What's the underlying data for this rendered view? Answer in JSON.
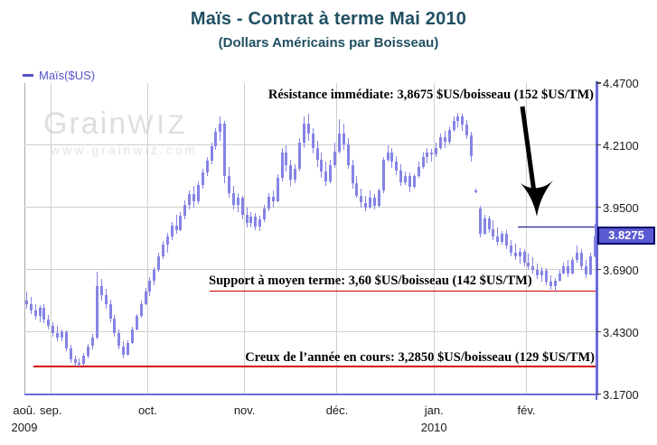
{
  "header": {
    "title": "Maïs - Contrat à terme Mai 2010",
    "subtitle": "(Dollars Américains par Boisseau)"
  },
  "legend": {
    "label": "Maïs($US)"
  },
  "watermark": {
    "logo_grain": "Grain",
    "logo_wiz": "WIZ",
    "url": "www.grainwiz.com"
  },
  "annotations": {
    "resistance": {
      "text": "Résistance immédiate: 3,8675 $US/boisseau (152 $US/TM)"
    },
    "support": {
      "text": "Support à moyen terme: 3,60 $US/boisseau (142 $US/TM)"
    },
    "year_low": {
      "text": "Creux de l’année en cours: 3,2850 $US/boisseau (129 $US/TM)"
    }
  },
  "current_price": {
    "value": "3.8275"
  },
  "appearance": {
    "bar_color": "#8484e4",
    "axis_color": "#6b6bd8",
    "grid_color": "#cfcfcf",
    "plot_border_color": "#aaaaaa",
    "support_line_color": "#d40000",
    "resistance_line_color": "#00008c",
    "price_box_fill": "#5a5ad2",
    "price_box_border": "#000066",
    "title_color": "#215063",
    "legend_color": "#5353cb",
    "watermark_color": "#dedede"
  },
  "chart_data": {
    "type": "candlestick",
    "title": "Maïs - Contrat à terme Mai 2010",
    "subtitle": "(Dollars Américains par Boisseau)",
    "series_name": "Maïs($US)",
    "y_min": 3.17,
    "y_max": 4.47,
    "y_ticks": [
      "4.4700",
      "4.2100",
      "3.9500",
      "3.6900",
      "3.4300",
      "3.1700"
    ],
    "grid_y": [
      4.21,
      3.95,
      3.69,
      3.43
    ],
    "months": [
      {
        "label": "aoû.",
        "year": "2009",
        "start": 0
      },
      {
        "label": "sep.",
        "start": 6
      },
      {
        "label": "oct.",
        "start": 28
      },
      {
        "label": "nov.",
        "start": 50
      },
      {
        "label": "déc.",
        "start": 71
      },
      {
        "label": "jan.",
        "year": "2010",
        "start": 93
      },
      {
        "label": "fév.",
        "start": 114
      }
    ],
    "levels": [
      {
        "name": "resistance_immediate",
        "value": 3.8675,
        "value_label": "3,8675",
        "per_tonne": "152 $US/TM",
        "color": "#00008c",
        "from_bar": 112
      },
      {
        "name": "support_moyen_terme",
        "value": 3.6,
        "value_label": "3,60",
        "per_tonne": "142 $US/TM",
        "color": "#d40000",
        "from_bar": 42
      },
      {
        "name": "creux_annee_en_cours",
        "value": 3.285,
        "value_label": "3,2850",
        "per_tonne": "129 $US/TM",
        "color": "#d40000",
        "from_bar": 2
      }
    ],
    "last_price": 3.8275,
    "bars_format": "[open, high, low, close] $US per bushel, daily, late Aug 2009 - Feb 2010 (estimated from chart)",
    "bars": [
      [
        3.56,
        3.6,
        3.525,
        3.545
      ],
      [
        3.545,
        3.575,
        3.505,
        3.52
      ],
      [
        3.52,
        3.545,
        3.48,
        3.495
      ],
      [
        3.495,
        3.54,
        3.47,
        3.53
      ],
      [
        3.53,
        3.545,
        3.465,
        3.48
      ],
      [
        3.48,
        3.5,
        3.44,
        3.455
      ],
      [
        3.455,
        3.47,
        3.41,
        3.425
      ],
      [
        3.425,
        3.455,
        3.39,
        3.405
      ],
      [
        3.405,
        3.44,
        3.39,
        3.43
      ],
      [
        3.43,
        3.435,
        3.35,
        3.36
      ],
      [
        3.36,
        3.375,
        3.3,
        3.315
      ],
      [
        3.315,
        3.33,
        3.285,
        3.3
      ],
      [
        3.3,
        3.32,
        3.285,
        3.295
      ],
      [
        3.295,
        3.34,
        3.29,
        3.33
      ],
      [
        3.33,
        3.38,
        3.32,
        3.37
      ],
      [
        3.37,
        3.42,
        3.355,
        3.405
      ],
      [
        3.405,
        3.68,
        3.4,
        3.62
      ],
      [
        3.62,
        3.65,
        3.56,
        3.585
      ],
      [
        3.585,
        3.61,
        3.525,
        3.545
      ],
      [
        3.545,
        3.565,
        3.47,
        3.485
      ],
      [
        3.485,
        3.5,
        3.41,
        3.425
      ],
      [
        3.425,
        3.44,
        3.355,
        3.37
      ],
      [
        3.37,
        3.39,
        3.32,
        3.335
      ],
      [
        3.335,
        3.395,
        3.33,
        3.385
      ],
      [
        3.385,
        3.45,
        3.38,
        3.44
      ],
      [
        3.44,
        3.505,
        3.435,
        3.495
      ],
      [
        3.495,
        3.56,
        3.49,
        3.545
      ],
      [
        3.545,
        3.615,
        3.54,
        3.6
      ],
      [
        3.6,
        3.66,
        3.58,
        3.645
      ],
      [
        3.645,
        3.7,
        3.625,
        3.69
      ],
      [
        3.69,
        3.76,
        3.68,
        3.745
      ],
      [
        3.745,
        3.81,
        3.735,
        3.795
      ],
      [
        3.795,
        3.845,
        3.76,
        3.83
      ],
      [
        3.83,
        3.89,
        3.815,
        3.875
      ],
      [
        3.875,
        3.92,
        3.84,
        3.855
      ],
      [
        3.855,
        3.93,
        3.85,
        3.915
      ],
      [
        3.915,
        3.98,
        3.9,
        3.96
      ],
      [
        3.96,
        4.02,
        3.94,
        4.005
      ],
      [
        4.005,
        4.04,
        3.95,
        3.975
      ],
      [
        3.975,
        4.06,
        3.965,
        4.045
      ],
      [
        4.045,
        4.11,
        4.03,
        4.095
      ],
      [
        4.095,
        4.16,
        4.08,
        4.145
      ],
      [
        4.145,
        4.22,
        4.13,
        4.205
      ],
      [
        4.205,
        4.28,
        4.19,
        4.265
      ],
      [
        4.265,
        4.33,
        4.23,
        4.3
      ],
      [
        4.3,
        4.31,
        4.05,
        4.08
      ],
      [
        4.08,
        4.12,
        3.99,
        4.01
      ],
      [
        4.01,
        4.04,
        3.94,
        3.96
      ],
      [
        3.96,
        4.01,
        3.93,
        3.99
      ],
      [
        3.99,
        4.0,
        3.9,
        3.92
      ],
      [
        3.92,
        3.95,
        3.865,
        3.885
      ],
      [
        3.885,
        3.93,
        3.865,
        3.91
      ],
      [
        3.91,
        3.925,
        3.855,
        3.87
      ],
      [
        3.87,
        3.915,
        3.85,
        3.9
      ],
      [
        3.9,
        3.96,
        3.89,
        3.945
      ],
      [
        3.945,
        4.01,
        3.935,
        3.995
      ],
      [
        3.995,
        4.02,
        3.95,
        3.975
      ],
      [
        3.975,
        4.09,
        3.97,
        4.075
      ],
      [
        4.075,
        4.2,
        4.06,
        4.18
      ],
      [
        4.18,
        4.21,
        4.1,
        4.125
      ],
      [
        4.125,
        4.15,
        4.04,
        4.065
      ],
      [
        4.065,
        4.13,
        4.05,
        4.11
      ],
      [
        4.11,
        4.24,
        4.1,
        4.22
      ],
      [
        4.22,
        4.33,
        4.2,
        4.3
      ],
      [
        4.3,
        4.34,
        4.23,
        4.26
      ],
      [
        4.26,
        4.28,
        4.175,
        4.2
      ],
      [
        4.2,
        4.23,
        4.12,
        4.15
      ],
      [
        4.15,
        4.18,
        4.075,
        4.1
      ],
      [
        4.1,
        4.14,
        4.04,
        4.06
      ],
      [
        4.06,
        4.15,
        4.05,
        4.125
      ],
      [
        4.125,
        4.22,
        4.115,
        4.185
      ],
      [
        4.185,
        4.32,
        4.175,
        4.26
      ],
      [
        4.26,
        4.3,
        4.19,
        4.215
      ],
      [
        4.215,
        4.24,
        4.11,
        4.125
      ],
      [
        4.125,
        4.15,
        4.03,
        4.05
      ],
      [
        4.05,
        4.08,
        3.99,
        4.0
      ],
      [
        4.0,
        4.03,
        3.95,
        3.97
      ],
      [
        3.97,
        4.0,
        3.935,
        3.95
      ],
      [
        3.95,
        4.02,
        3.945,
        3.99
      ],
      [
        3.99,
        4.005,
        3.94,
        3.955
      ],
      [
        3.955,
        4.03,
        3.95,
        4.02
      ],
      [
        4.02,
        4.16,
        4.01,
        4.15
      ],
      [
        4.15,
        4.21,
        4.14,
        4.18
      ],
      [
        4.18,
        4.2,
        4.115,
        4.14
      ],
      [
        4.14,
        4.165,
        4.085,
        4.105
      ],
      [
        4.105,
        4.13,
        4.04,
        4.055
      ],
      [
        4.055,
        4.1,
        4.045,
        4.08
      ],
      [
        4.08,
        4.095,
        4.015,
        4.035
      ],
      [
        4.035,
        4.09,
        4.03,
        4.08
      ],
      [
        4.08,
        4.14,
        4.075,
        4.12
      ],
      [
        4.12,
        4.18,
        4.11,
        4.16
      ],
      [
        4.16,
        4.2,
        4.135,
        4.18
      ],
      [
        4.18,
        4.195,
        4.14,
        4.17
      ],
      [
        4.17,
        4.22,
        4.16,
        4.2
      ],
      [
        4.2,
        4.26,
        4.19,
        4.245
      ],
      [
        4.245,
        4.27,
        4.2,
        4.225
      ],
      [
        4.225,
        4.29,
        4.215,
        4.275
      ],
      [
        4.275,
        4.33,
        4.265,
        4.31
      ],
      [
        4.31,
        4.345,
        4.285,
        4.33
      ],
      [
        4.33,
        4.34,
        4.27,
        4.295
      ],
      [
        4.295,
        4.315,
        4.235,
        4.25
      ],
      [
        4.25,
        4.265,
        4.14,
        4.165
      ],
      [
        4.02,
        4.03,
        4.01,
        4.02
      ],
      [
        3.945,
        3.955,
        3.825,
        3.84
      ],
      [
        3.84,
        3.92,
        3.835,
        3.905
      ],
      [
        3.905,
        3.915,
        3.845,
        3.86
      ],
      [
        3.86,
        3.895,
        3.815,
        3.83
      ],
      [
        3.83,
        3.865,
        3.79,
        3.805
      ],
      [
        3.805,
        3.85,
        3.795,
        3.84
      ],
      [
        3.84,
        3.855,
        3.775,
        3.79
      ],
      [
        3.79,
        3.815,
        3.745,
        3.76
      ],
      [
        3.76,
        3.8,
        3.73,
        3.745
      ],
      [
        3.745,
        3.78,
        3.715,
        3.765
      ],
      [
        3.765,
        3.775,
        3.705,
        3.72
      ],
      [
        3.72,
        3.755,
        3.69,
        3.705
      ],
      [
        3.705,
        3.74,
        3.675,
        3.69
      ],
      [
        3.69,
        3.715,
        3.65,
        3.665
      ],
      [
        3.665,
        3.7,
        3.64,
        3.685
      ],
      [
        3.685,
        3.695,
        3.625,
        3.64
      ],
      [
        3.64,
        3.665,
        3.605,
        3.62
      ],
      [
        3.62,
        3.655,
        3.6,
        3.645
      ],
      [
        3.645,
        3.69,
        3.64,
        3.675
      ],
      [
        3.675,
        3.72,
        3.67,
        3.705
      ],
      [
        3.705,
        3.73,
        3.66,
        3.675
      ],
      [
        3.675,
        3.74,
        3.67,
        3.73
      ],
      [
        3.73,
        3.79,
        3.72,
        3.76
      ],
      [
        3.76,
        3.775,
        3.69,
        3.705
      ],
      [
        3.705,
        3.73,
        3.655,
        3.67
      ],
      [
        3.67,
        3.76,
        3.665,
        3.745
      ],
      [
        3.745,
        3.88,
        3.74,
        3.8275
      ]
    ]
  }
}
